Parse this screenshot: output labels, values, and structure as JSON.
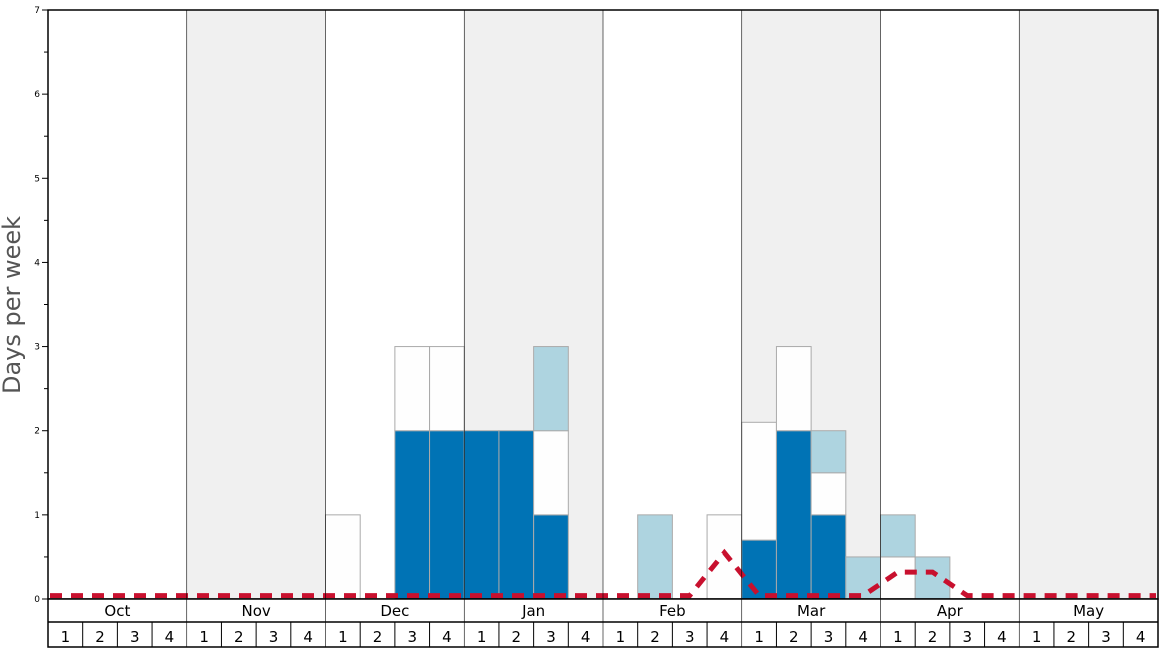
{
  "chart_data": {
    "type": "bar",
    "ylabel": "Days per week",
    "ylim": [
      0,
      7
    ],
    "yticks": [
      "0",
      "1",
      "2",
      "3",
      "4",
      "5",
      "6",
      "7"
    ],
    "months": [
      "Oct",
      "Nov",
      "Dec",
      "Jan",
      "Feb",
      "Mar",
      "Apr",
      "May"
    ],
    "weeks": [
      "1",
      "2",
      "3",
      "4"
    ],
    "shaded_months": [
      "Nov",
      "Jan",
      "Mar",
      "May"
    ],
    "colors": {
      "dark_blue": "#0073b5",
      "white": "#fefefe",
      "light_blue": "#aed4e0",
      "month_shade": "#f0f0f0",
      "trend_line": "#c8102e",
      "bar_border": "#aaaaaa"
    },
    "series": [
      {
        "color": "dark_blue",
        "values": [
          0,
          0,
          0,
          0,
          0,
          0,
          0,
          0,
          0,
          0,
          2,
          2,
          2,
          2,
          1,
          0,
          0,
          0,
          0,
          0,
          0.7,
          2,
          1,
          0,
          0,
          0,
          0,
          0,
          0,
          0,
          0,
          0
        ]
      },
      {
        "color": "white",
        "values": [
          0,
          0,
          0,
          0,
          0,
          0,
          0,
          0,
          1,
          0,
          1,
          1,
          0,
          0,
          1,
          0,
          0,
          0,
          0,
          1,
          1.4,
          1,
          0.5,
          0,
          0.5,
          0,
          0,
          0,
          0,
          0,
          0,
          0
        ]
      },
      {
        "color": "light_blue",
        "values": [
          0,
          0,
          0,
          0,
          0,
          0,
          0,
          0,
          0,
          0,
          0,
          0,
          0,
          0,
          1,
          0,
          0,
          1,
          0,
          0,
          0,
          0,
          0.5,
          0.5,
          0.5,
          0.5,
          0,
          0,
          0,
          0,
          0,
          0
        ]
      }
    ],
    "trend": {
      "style": "dashed",
      "values": [
        0.04,
        0.04,
        0.04,
        0.04,
        0.04,
        0.04,
        0.04,
        0.04,
        0.04,
        0.04,
        0.04,
        0.04,
        0.04,
        0.04,
        0.04,
        0.04,
        0.04,
        0.04,
        0.04,
        0.55,
        0.04,
        0.04,
        0.04,
        0.04,
        0.32,
        0.32,
        0.04,
        0.04,
        0.04,
        0.04,
        0.04,
        0.04
      ]
    }
  }
}
